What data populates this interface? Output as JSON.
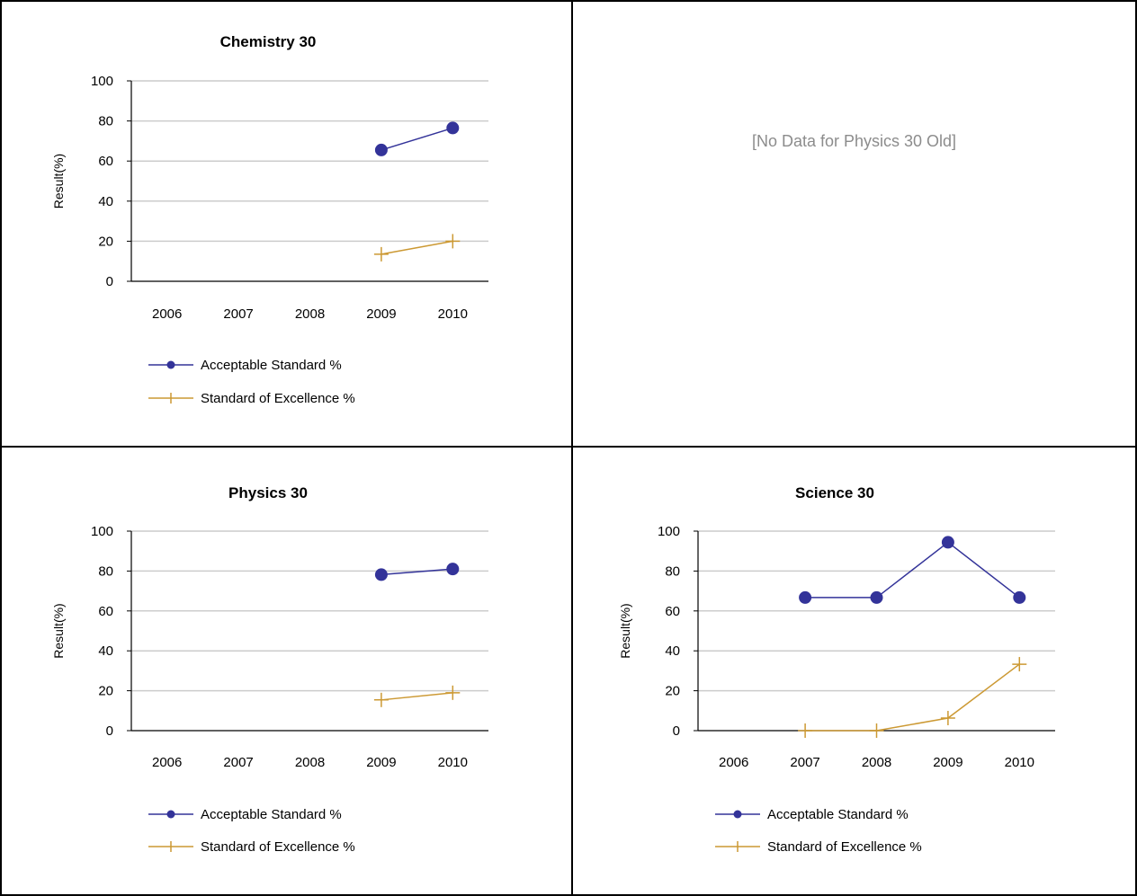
{
  "no_data_message": "[No Data for Physics 30 Old]",
  "colors": {
    "acceptable": "#333399",
    "excellence": "#cc9933",
    "gridline": "#cccccc",
    "axis": "#000000",
    "nodata_text": "#8c8c8c"
  },
  "chart_data": [
    {
      "type": "line",
      "title": "Chemistry 30",
      "ylabel": "Result(%)",
      "xlabel": "",
      "categories": [
        "2006",
        "2007",
        "2008",
        "2009",
        "2010"
      ],
      "ylim": [
        0,
        100
      ],
      "yticks": [
        0,
        20,
        40,
        60,
        80,
        100
      ],
      "grid": true,
      "legend_position": "bottom",
      "series": [
        {
          "name": "Acceptable Standard %",
          "marker": "circle",
          "values": [
            null,
            null,
            null,
            65.5,
            76.5
          ]
        },
        {
          "name": "Standard of Excellence %",
          "marker": "plus",
          "values": [
            null,
            null,
            null,
            13.5,
            20.0
          ]
        }
      ]
    },
    {
      "type": "line",
      "title": "Physics 30",
      "ylabel": "Result(%)",
      "xlabel": "",
      "categories": [
        "2006",
        "2007",
        "2008",
        "2009",
        "2010"
      ],
      "ylim": [
        0,
        100
      ],
      "yticks": [
        0,
        20,
        40,
        60,
        80,
        100
      ],
      "grid": true,
      "legend_position": "bottom",
      "series": [
        {
          "name": "Acceptable Standard %",
          "marker": "circle",
          "values": [
            null,
            null,
            null,
            78.2,
            81.0
          ]
        },
        {
          "name": "Standard of Excellence %",
          "marker": "plus",
          "values": [
            null,
            null,
            null,
            15.4,
            19.0
          ]
        }
      ]
    },
    {
      "type": "line",
      "title": "Science 30",
      "ylabel": "Result(%)",
      "xlabel": "",
      "categories": [
        "2006",
        "2007",
        "2008",
        "2009",
        "2010"
      ],
      "ylim": [
        0,
        100
      ],
      "yticks": [
        0,
        20,
        40,
        60,
        80,
        100
      ],
      "grid": true,
      "legend_position": "bottom",
      "series": [
        {
          "name": "Acceptable Standard %",
          "marker": "circle",
          "values": [
            null,
            66.7,
            66.7,
            94.4,
            66.7
          ]
        },
        {
          "name": "Standard of Excellence %",
          "marker": "plus",
          "values": [
            null,
            0,
            0,
            6.3,
            33.3
          ]
        }
      ]
    }
  ]
}
